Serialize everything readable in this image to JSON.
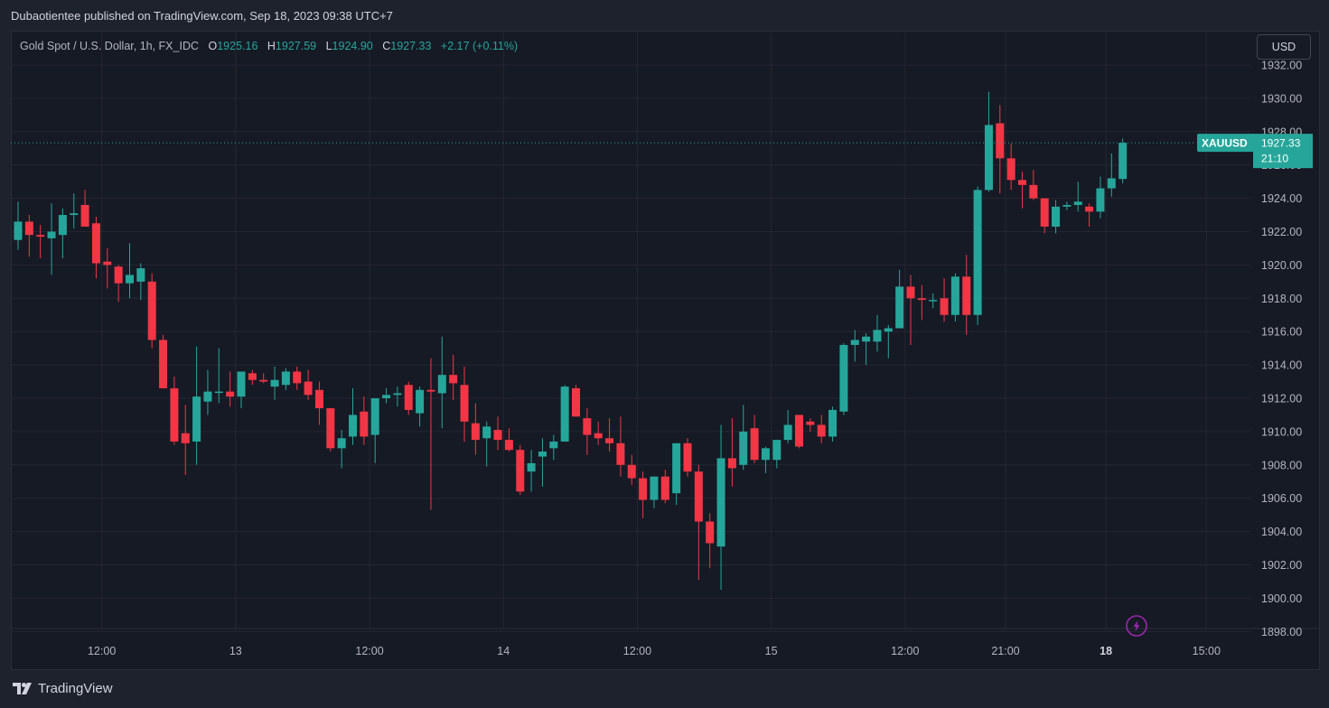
{
  "header": {
    "publisher_line": "Dubaotientee published on TradingView.com, Sep 18, 2023 09:38 UTC+7"
  },
  "legend": {
    "symbol": "Gold Spot / U.S. Dollar, 1h, FX_IDC",
    "o_label": "O",
    "o_value": "1925.16",
    "h_label": "H",
    "h_value": "1927.59",
    "l_label": "L",
    "l_value": "1924.90",
    "c_label": "C",
    "c_value": "1927.33",
    "change": "+2.17 (+0.11%)"
  },
  "currency_button": "USD",
  "price_tag": {
    "symbol": "XAUUSD",
    "price": "1927.33",
    "countdown": "21:10"
  },
  "footer": {
    "brand": "TradingView"
  },
  "colors": {
    "up": "#26a69a",
    "down": "#f23645",
    "background": "#161a25",
    "grid": "#242732",
    "text": "#b2b5be"
  },
  "chart_data": {
    "type": "candlestick",
    "symbol": "XAUUSD",
    "timeframe": "1h",
    "y_axis": {
      "range": [
        1897,
        1933
      ],
      "ticks": [
        "1932.00",
        "1930.00",
        "1928.00",
        "1926.00",
        "1924.00",
        "1922.00",
        "1920.00",
        "1918.00",
        "1916.00",
        "1914.00",
        "1912.00",
        "1910.00",
        "1908.00",
        "1906.00",
        "1904.00",
        "1902.00",
        "1900.00",
        "1898.00"
      ]
    },
    "x_axis": {
      "ticks": [
        {
          "label": "12:00",
          "index": 7.5
        },
        {
          "label": "13",
          "index": 19.5
        },
        {
          "label": "12:00",
          "index": 31.5
        },
        {
          "label": "14",
          "index": 43.5
        },
        {
          "label": "12:00",
          "index": 55.5
        },
        {
          "label": "15",
          "index": 67.5
        },
        {
          "label": "12:00",
          "index": 79.5
        },
        {
          "label": "21:00",
          "index": 88.5
        },
        {
          "label": "18",
          "index": 97.5,
          "bold": true
        },
        {
          "label": "15:00",
          "index": 106.5
        }
      ]
    },
    "grid": true,
    "candles": [
      {
        "o": 1921.5,
        "h": 1923.8,
        "l": 1920.9,
        "c": 1922.6
      },
      {
        "o": 1922.6,
        "h": 1923.0,
        "l": 1920.5,
        "c": 1921.8
      },
      {
        "o": 1921.8,
        "h": 1922.4,
        "l": 1920.4,
        "c": 1921.7
      },
      {
        "o": 1921.6,
        "h": 1923.7,
        "l": 1919.4,
        "c": 1922.0
      },
      {
        "o": 1921.8,
        "h": 1923.4,
        "l": 1920.4,
        "c": 1923.0
      },
      {
        "o": 1923.0,
        "h": 1924.3,
        "l": 1922.2,
        "c": 1923.1
      },
      {
        "o": 1923.6,
        "h": 1924.5,
        "l": 1922.3,
        "c": 1922.3
      },
      {
        "o": 1922.5,
        "h": 1922.9,
        "l": 1919.2,
        "c": 1920.1
      },
      {
        "o": 1920.2,
        "h": 1921.0,
        "l": 1918.6,
        "c": 1920.0
      },
      {
        "o": 1919.9,
        "h": 1920.0,
        "l": 1917.8,
        "c": 1918.9
      },
      {
        "o": 1918.9,
        "h": 1921.3,
        "l": 1918.0,
        "c": 1919.4
      },
      {
        "o": 1919.0,
        "h": 1920.1,
        "l": 1917.9,
        "c": 1919.8
      },
      {
        "o": 1919.0,
        "h": 1919.5,
        "l": 1915.0,
        "c": 1915.5
      },
      {
        "o": 1915.5,
        "h": 1915.8,
        "l": 1912.6,
        "c": 1912.6
      },
      {
        "o": 1912.6,
        "h": 1913.3,
        "l": 1909.2,
        "c": 1909.4
      },
      {
        "o": 1909.9,
        "h": 1911.6,
        "l": 1907.4,
        "c": 1909.3
      },
      {
        "o": 1909.4,
        "h": 1915.1,
        "l": 1908.0,
        "c": 1912.1
      },
      {
        "o": 1911.8,
        "h": 1913.7,
        "l": 1911.0,
        "c": 1912.4
      },
      {
        "o": 1912.4,
        "h": 1915.0,
        "l": 1911.7,
        "c": 1912.4
      },
      {
        "o": 1912.4,
        "h": 1913.6,
        "l": 1911.5,
        "c": 1912.1
      },
      {
        "o": 1912.1,
        "h": 1913.6,
        "l": 1911.4,
        "c": 1913.6
      },
      {
        "o": 1913.5,
        "h": 1913.7,
        "l": 1912.8,
        "c": 1913.1
      },
      {
        "o": 1913.1,
        "h": 1913.5,
        "l": 1912.9,
        "c": 1913.0
      },
      {
        "o": 1912.7,
        "h": 1913.9,
        "l": 1911.9,
        "c": 1913.1
      },
      {
        "o": 1912.8,
        "h": 1913.8,
        "l": 1912.5,
        "c": 1913.6
      },
      {
        "o": 1913.6,
        "h": 1913.9,
        "l": 1912.5,
        "c": 1912.9
      },
      {
        "o": 1913.0,
        "h": 1913.7,
        "l": 1911.9,
        "c": 1912.2
      },
      {
        "o": 1912.5,
        "h": 1913.0,
        "l": 1910.4,
        "c": 1911.4
      },
      {
        "o": 1911.4,
        "h": 1911.4,
        "l": 1908.8,
        "c": 1909.0
      },
      {
        "o": 1909.0,
        "h": 1910.1,
        "l": 1907.8,
        "c": 1909.6
      },
      {
        "o": 1909.7,
        "h": 1912.6,
        "l": 1909.2,
        "c": 1911.0
      },
      {
        "o": 1911.2,
        "h": 1912.1,
        "l": 1909.2,
        "c": 1909.7
      },
      {
        "o": 1909.8,
        "h": 1912.0,
        "l": 1908.1,
        "c": 1912.0
      },
      {
        "o": 1912.0,
        "h": 1912.6,
        "l": 1911.7,
        "c": 1912.2
      },
      {
        "o": 1912.2,
        "h": 1912.7,
        "l": 1911.5,
        "c": 1912.3
      },
      {
        "o": 1912.8,
        "h": 1913.0,
        "l": 1911.0,
        "c": 1911.3
      },
      {
        "o": 1911.1,
        "h": 1912.7,
        "l": 1910.3,
        "c": 1912.5
      },
      {
        "o": 1912.5,
        "h": 1914.4,
        "l": 1905.3,
        "c": 1912.4
      },
      {
        "o": 1912.3,
        "h": 1915.7,
        "l": 1910.2,
        "c": 1913.4
      },
      {
        "o": 1913.4,
        "h": 1914.6,
        "l": 1911.9,
        "c": 1912.9
      },
      {
        "o": 1912.8,
        "h": 1913.9,
        "l": 1909.4,
        "c": 1910.6
      },
      {
        "o": 1910.5,
        "h": 1911.7,
        "l": 1908.6,
        "c": 1909.5
      },
      {
        "o": 1909.6,
        "h": 1910.6,
        "l": 1907.9,
        "c": 1910.3
      },
      {
        "o": 1910.1,
        "h": 1910.9,
        "l": 1908.9,
        "c": 1909.5
      },
      {
        "o": 1909.5,
        "h": 1910.2,
        "l": 1908.8,
        "c": 1908.9
      },
      {
        "o": 1908.9,
        "h": 1909.2,
        "l": 1906.2,
        "c": 1906.4
      },
      {
        "o": 1907.6,
        "h": 1908.9,
        "l": 1906.4,
        "c": 1908.1
      },
      {
        "o": 1908.5,
        "h": 1909.6,
        "l": 1906.7,
        "c": 1908.8
      },
      {
        "o": 1909.0,
        "h": 1909.8,
        "l": 1908.3,
        "c": 1909.4
      },
      {
        "o": 1909.4,
        "h": 1912.8,
        "l": 1909.4,
        "c": 1912.7
      },
      {
        "o": 1912.6,
        "h": 1912.8,
        "l": 1910.9,
        "c": 1910.9
      },
      {
        "o": 1910.8,
        "h": 1911.4,
        "l": 1908.6,
        "c": 1909.8
      },
      {
        "o": 1909.9,
        "h": 1910.6,
        "l": 1909.2,
        "c": 1909.6
      },
      {
        "o": 1909.6,
        "h": 1910.8,
        "l": 1908.8,
        "c": 1909.3
      },
      {
        "o": 1909.3,
        "h": 1910.9,
        "l": 1907.3,
        "c": 1908.0
      },
      {
        "o": 1908.0,
        "h": 1908.6,
        "l": 1906.8,
        "c": 1907.2
      },
      {
        "o": 1907.2,
        "h": 1907.6,
        "l": 1904.8,
        "c": 1905.9
      },
      {
        "o": 1905.9,
        "h": 1907.3,
        "l": 1905.4,
        "c": 1907.3
      },
      {
        "o": 1907.3,
        "h": 1907.7,
        "l": 1905.7,
        "c": 1905.9
      },
      {
        "o": 1906.3,
        "h": 1909.3,
        "l": 1905.6,
        "c": 1909.3
      },
      {
        "o": 1909.3,
        "h": 1909.6,
        "l": 1907.3,
        "c": 1907.6
      },
      {
        "o": 1907.6,
        "h": 1908.0,
        "l": 1901.1,
        "c": 1904.6
      },
      {
        "o": 1904.6,
        "h": 1905.1,
        "l": 1901.8,
        "c": 1903.3
      },
      {
        "o": 1903.1,
        "h": 1910.4,
        "l": 1900.5,
        "c": 1908.4
      },
      {
        "o": 1908.4,
        "h": 1910.8,
        "l": 1906.7,
        "c": 1907.8
      },
      {
        "o": 1908.0,
        "h": 1911.6,
        "l": 1907.7,
        "c": 1910.0
      },
      {
        "o": 1910.2,
        "h": 1911.0,
        "l": 1908.1,
        "c": 1908.3
      },
      {
        "o": 1908.3,
        "h": 1909.1,
        "l": 1907.5,
        "c": 1909.0
      },
      {
        "o": 1908.3,
        "h": 1909.3,
        "l": 1907.8,
        "c": 1909.5
      },
      {
        "o": 1909.5,
        "h": 1911.3,
        "l": 1909.3,
        "c": 1910.4
      },
      {
        "o": 1911.0,
        "h": 1911.0,
        "l": 1909.0,
        "c": 1909.1
      },
      {
        "o": 1910.6,
        "h": 1910.8,
        "l": 1910.0,
        "c": 1910.4
      },
      {
        "o": 1910.4,
        "h": 1911.0,
        "l": 1909.3,
        "c": 1909.7
      },
      {
        "o": 1909.7,
        "h": 1911.5,
        "l": 1909.4,
        "c": 1911.3
      },
      {
        "o": 1911.2,
        "h": 1915.3,
        "l": 1911.0,
        "c": 1915.2
      },
      {
        "o": 1915.2,
        "h": 1916.1,
        "l": 1914.2,
        "c": 1915.5
      },
      {
        "o": 1915.4,
        "h": 1915.9,
        "l": 1914.0,
        "c": 1915.7
      },
      {
        "o": 1915.4,
        "h": 1917.0,
        "l": 1914.8,
        "c": 1916.1
      },
      {
        "o": 1916.0,
        "h": 1916.4,
        "l": 1914.4,
        "c": 1916.2
      },
      {
        "o": 1916.2,
        "h": 1919.7,
        "l": 1916.2,
        "c": 1918.7
      },
      {
        "o": 1918.7,
        "h": 1919.4,
        "l": 1915.2,
        "c": 1918.0
      },
      {
        "o": 1918.0,
        "h": 1918.8,
        "l": 1916.7,
        "c": 1917.9
      },
      {
        "o": 1917.9,
        "h": 1918.3,
        "l": 1917.4,
        "c": 1917.9
      },
      {
        "o": 1918.0,
        "h": 1919.2,
        "l": 1916.6,
        "c": 1917.0
      },
      {
        "o": 1917.0,
        "h": 1919.5,
        "l": 1916.6,
        "c": 1919.3
      },
      {
        "o": 1919.3,
        "h": 1920.6,
        "l": 1915.8,
        "c": 1917.0
      },
      {
        "o": 1917.0,
        "h": 1924.7,
        "l": 1916.4,
        "c": 1924.5
      },
      {
        "o": 1924.5,
        "h": 1930.4,
        "l": 1924.4,
        "c": 1928.4
      },
      {
        "o": 1928.5,
        "h": 1929.6,
        "l": 1924.3,
        "c": 1926.4
      },
      {
        "o": 1926.4,
        "h": 1927.3,
        "l": 1924.5,
        "c": 1925.1
      },
      {
        "o": 1925.1,
        "h": 1925.6,
        "l": 1923.4,
        "c": 1924.8
      },
      {
        "o": 1924.8,
        "h": 1925.7,
        "l": 1923.9,
        "c": 1924.0
      },
      {
        "o": 1924.0,
        "h": 1924.0,
        "l": 1921.9,
        "c": 1922.3
      },
      {
        "o": 1922.3,
        "h": 1923.9,
        "l": 1921.9,
        "c": 1923.5
      },
      {
        "o": 1923.5,
        "h": 1923.8,
        "l": 1923.3,
        "c": 1923.6
      },
      {
        "o": 1923.6,
        "h": 1925.0,
        "l": 1923.2,
        "c": 1923.8
      },
      {
        "o": 1923.5,
        "h": 1923.7,
        "l": 1922.3,
        "c": 1923.2
      },
      {
        "o": 1923.2,
        "h": 1925.3,
        "l": 1922.8,
        "c": 1924.6
      },
      {
        "o": 1924.6,
        "h": 1926.7,
        "l": 1924.1,
        "c": 1925.2
      },
      {
        "o": 1925.16,
        "h": 1927.59,
        "l": 1924.9,
        "c": 1927.33
      }
    ]
  }
}
